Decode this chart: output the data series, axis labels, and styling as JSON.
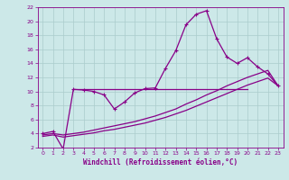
{
  "xlabel": "Windchill (Refroidissement éolien,°C)",
  "bg_color": "#cce8e8",
  "line_color": "#880088",
  "grid_color": "#aacccc",
  "xlim": [
    -0.5,
    23.5
  ],
  "ylim": [
    2,
    22
  ],
  "xticks": [
    0,
    1,
    2,
    3,
    4,
    5,
    6,
    7,
    8,
    9,
    10,
    11,
    12,
    13,
    14,
    15,
    16,
    17,
    18,
    19,
    20,
    21,
    22,
    23
  ],
  "yticks": [
    2,
    4,
    6,
    8,
    10,
    12,
    14,
    16,
    18,
    20,
    22
  ],
  "series1_x": [
    0,
    1,
    2,
    3,
    4,
    5,
    6,
    7,
    8,
    9,
    10,
    11,
    12,
    13,
    14,
    15,
    16,
    17,
    18,
    19,
    20,
    21,
    22,
    23
  ],
  "series1_y": [
    4.0,
    4.3,
    1.8,
    10.3,
    10.2,
    10.0,
    9.5,
    7.5,
    8.5,
    9.8,
    10.4,
    10.5,
    13.3,
    15.8,
    19.5,
    21.0,
    21.5,
    17.5,
    14.9,
    14.0,
    14.8,
    13.5,
    12.5,
    10.8
  ],
  "series2_x": [
    0,
    1,
    2,
    3,
    4,
    5,
    6,
    7,
    8,
    9,
    10,
    11,
    12,
    13,
    14,
    15,
    16,
    17,
    18,
    19,
    20,
    21,
    22,
    23
  ],
  "series2_y": [
    3.8,
    4.0,
    3.8,
    4.0,
    4.2,
    4.5,
    4.8,
    5.1,
    5.4,
    5.7,
    6.1,
    6.5,
    7.0,
    7.5,
    8.2,
    8.8,
    9.5,
    10.1,
    10.8,
    11.4,
    12.0,
    12.5,
    13.0,
    10.8
  ],
  "series3_x": [
    0,
    1,
    2,
    3,
    4,
    5,
    6,
    7,
    8,
    9,
    10,
    11,
    12,
    13,
    14,
    15,
    16,
    17,
    18,
    19,
    20,
    21,
    22,
    23
  ],
  "series3_y": [
    3.6,
    3.8,
    3.5,
    3.7,
    3.9,
    4.1,
    4.4,
    4.6,
    4.9,
    5.2,
    5.5,
    5.9,
    6.3,
    6.8,
    7.3,
    7.9,
    8.5,
    9.1,
    9.7,
    10.3,
    10.9,
    11.4,
    11.9,
    10.8
  ],
  "hline_y": 10.3,
  "hline_xmin": 3,
  "hline_xmax": 20
}
